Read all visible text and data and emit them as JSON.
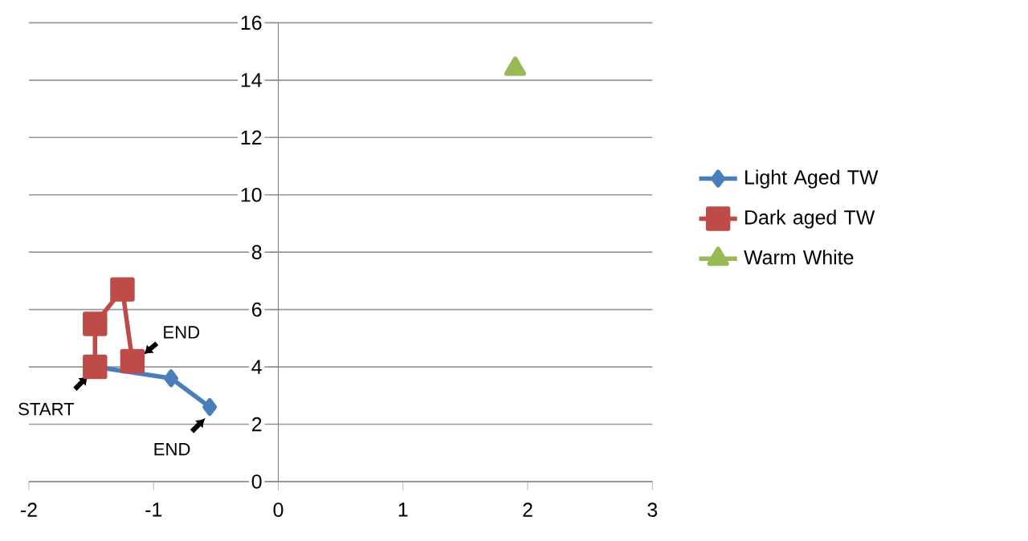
{
  "chart_data": {
    "type": "line",
    "series": [
      {
        "name": "Light Aged TW",
        "color": "#4a7ebb",
        "marker": "diamond",
        "x": [
          -1.47,
          -0.86,
          -0.55
        ],
        "values": [
          4.0,
          3.6,
          2.6
        ]
      },
      {
        "name": "Dark aged TW",
        "color": "#be4b48",
        "marker": "square",
        "x": [
          -1.47,
          -1.47,
          -1.25,
          -1.17
        ],
        "values": [
          4.0,
          5.5,
          6.7,
          4.2
        ]
      },
      {
        "name": "Warm White",
        "color": "#98b954",
        "marker": "triangle",
        "x": [
          1.9
        ],
        "values": [
          14.4
        ]
      }
    ],
    "xlim": [
      -2,
      3
    ],
    "xticks": [
      -2,
      -1,
      0,
      1,
      2,
      3
    ],
    "ylim": [
      0,
      16
    ],
    "yticks": [
      0,
      2,
      4,
      6,
      8,
      10,
      12,
      14,
      16
    ],
    "grid": "y",
    "legend": "right",
    "annotations": [
      {
        "text": "START",
        "x": -1.47,
        "y": 4.0
      },
      {
        "text": "END",
        "x": -1.17,
        "y": 4.2
      },
      {
        "text": "END",
        "x": -0.55,
        "y": 2.6
      }
    ]
  }
}
